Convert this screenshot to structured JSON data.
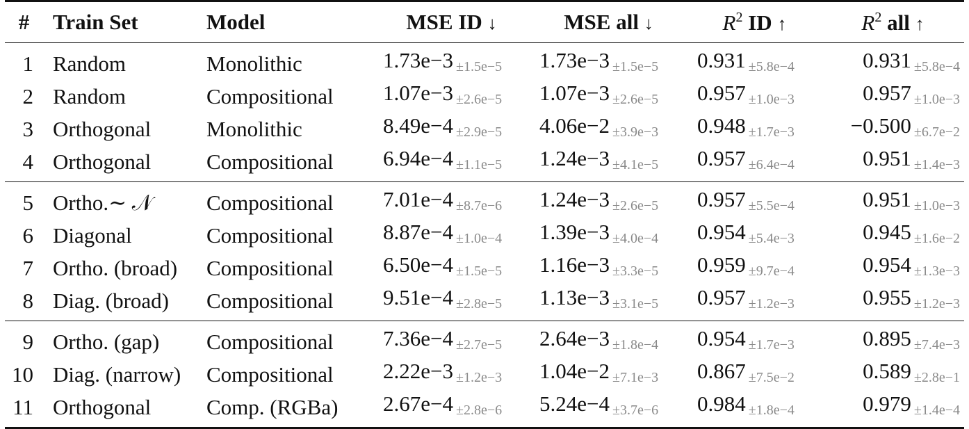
{
  "table": {
    "headers": {
      "index": "#",
      "train_set": "Train Set",
      "model": "Model",
      "mse_id": "MSE ID",
      "mse_all": "MSE all",
      "r2_id_symbol": "R",
      "r2_id_exp": "2",
      "r2_id_label": "ID",
      "r2_all_symbol": "R",
      "r2_all_exp": "2",
      "r2_all_label": "all",
      "down_arrow": "↓",
      "up_arrow": "↑"
    },
    "rows": [
      {
        "idx": "1",
        "train": "Random",
        "model": "Monolithic",
        "mse_id": "1.73e−3",
        "mse_id_std": "±1.5e−5",
        "mse_all": "1.73e−3",
        "mse_all_std": "±1.5e−5",
        "r2_id": "0.931",
        "r2_id_std": "±5.8e−4",
        "r2_all": "0.931",
        "r2_all_std": "±5.8e−4"
      },
      {
        "idx": "2",
        "train": "Random",
        "model": "Compositional",
        "mse_id": "1.07e−3",
        "mse_id_std": "±2.6e−5",
        "mse_all": "1.07e−3",
        "mse_all_std": "±2.6e−5",
        "r2_id": "0.957",
        "r2_id_std": "±1.0e−3",
        "r2_all": "0.957",
        "r2_all_std": "±1.0e−3"
      },
      {
        "idx": "3",
        "train": "Orthogonal",
        "model": "Monolithic",
        "mse_id": "8.49e−4",
        "mse_id_std": "±2.9e−5",
        "mse_all": "4.06e−2",
        "mse_all_std": "±3.9e−3",
        "r2_id": "0.948",
        "r2_id_std": "±1.7e−3",
        "r2_all": "−0.500",
        "r2_all_std": "±6.7e−2"
      },
      {
        "idx": "4",
        "train": "Orthogonal",
        "model": "Compositional",
        "mse_id": "6.94e−4",
        "mse_id_std": "±1.1e−5",
        "mse_all": "1.24e−3",
        "mse_all_std": "±4.1e−5",
        "r2_id": "0.957",
        "r2_id_std": "±6.4e−4",
        "r2_all": "0.951",
        "r2_all_std": "±1.4e−3"
      },
      {
        "idx": "5",
        "train": "Ortho.∼ 𝒩",
        "model": "Compositional",
        "mse_id": "7.01e−4",
        "mse_id_std": "±8.7e−6",
        "mse_all": "1.24e−3",
        "mse_all_std": "±2.6e−5",
        "r2_id": "0.957",
        "r2_id_std": "±5.5e−4",
        "r2_all": "0.951",
        "r2_all_std": "±1.0e−3"
      },
      {
        "idx": "6",
        "train": "Diagonal",
        "model": "Compositional",
        "mse_id": "8.87e−4",
        "mse_id_std": "±1.0e−4",
        "mse_all": "1.39e−3",
        "mse_all_std": "±4.0e−4",
        "r2_id": "0.954",
        "r2_id_std": "±5.4e−3",
        "r2_all": "0.945",
        "r2_all_std": "±1.6e−2"
      },
      {
        "idx": "7",
        "train": "Ortho. (broad)",
        "model": "Compositional",
        "mse_id": "6.50e−4",
        "mse_id_std": "±1.5e−5",
        "mse_all": "1.16e−3",
        "mse_all_std": "±3.3e−5",
        "r2_id": "0.959",
        "r2_id_std": "±9.7e−4",
        "r2_all": "0.954",
        "r2_all_std": "±1.3e−3"
      },
      {
        "idx": "8",
        "train": "Diag. (broad)",
        "model": "Compositional",
        "mse_id": "9.51e−4",
        "mse_id_std": "±2.8e−5",
        "mse_all": "1.13e−3",
        "mse_all_std": "±3.1e−5",
        "r2_id": "0.957",
        "r2_id_std": "±1.2e−3",
        "r2_all": "0.955",
        "r2_all_std": "±1.2e−3"
      },
      {
        "idx": "9",
        "train": "Ortho. (gap)",
        "model": "Compositional",
        "mse_id": "7.36e−4",
        "mse_id_std": "±2.7e−5",
        "mse_all": "2.64e−3",
        "mse_all_std": "±1.8e−4",
        "r2_id": "0.954",
        "r2_id_std": "±1.7e−3",
        "r2_all": "0.895",
        "r2_all_std": "±7.4e−3"
      },
      {
        "idx": "10",
        "train": "Diag. (narrow)",
        "model": "Compositional",
        "mse_id": "2.22e−3",
        "mse_id_std": "±1.2e−3",
        "mse_all": "1.04e−2",
        "mse_all_std": "±7.1e−3",
        "r2_id": "0.867",
        "r2_id_std": "±7.5e−2",
        "r2_all": "0.589",
        "r2_all_std": "±2.8e−1"
      },
      {
        "idx": "11",
        "train": "Orthogonal",
        "model": "Comp. (RGBa)",
        "mse_id": "2.67e−4",
        "mse_id_std": "±2.8e−6",
        "mse_all": "5.24e−4",
        "mse_all_std": "±3.7e−6",
        "r2_id": "0.984",
        "r2_id_std": "±1.8e−4",
        "r2_all": "0.979",
        "r2_all_std": "±1.4e−4"
      }
    ]
  },
  "colors": {
    "text": "#111111",
    "std_text": "#8a8a8a",
    "rule": "#111111"
  }
}
